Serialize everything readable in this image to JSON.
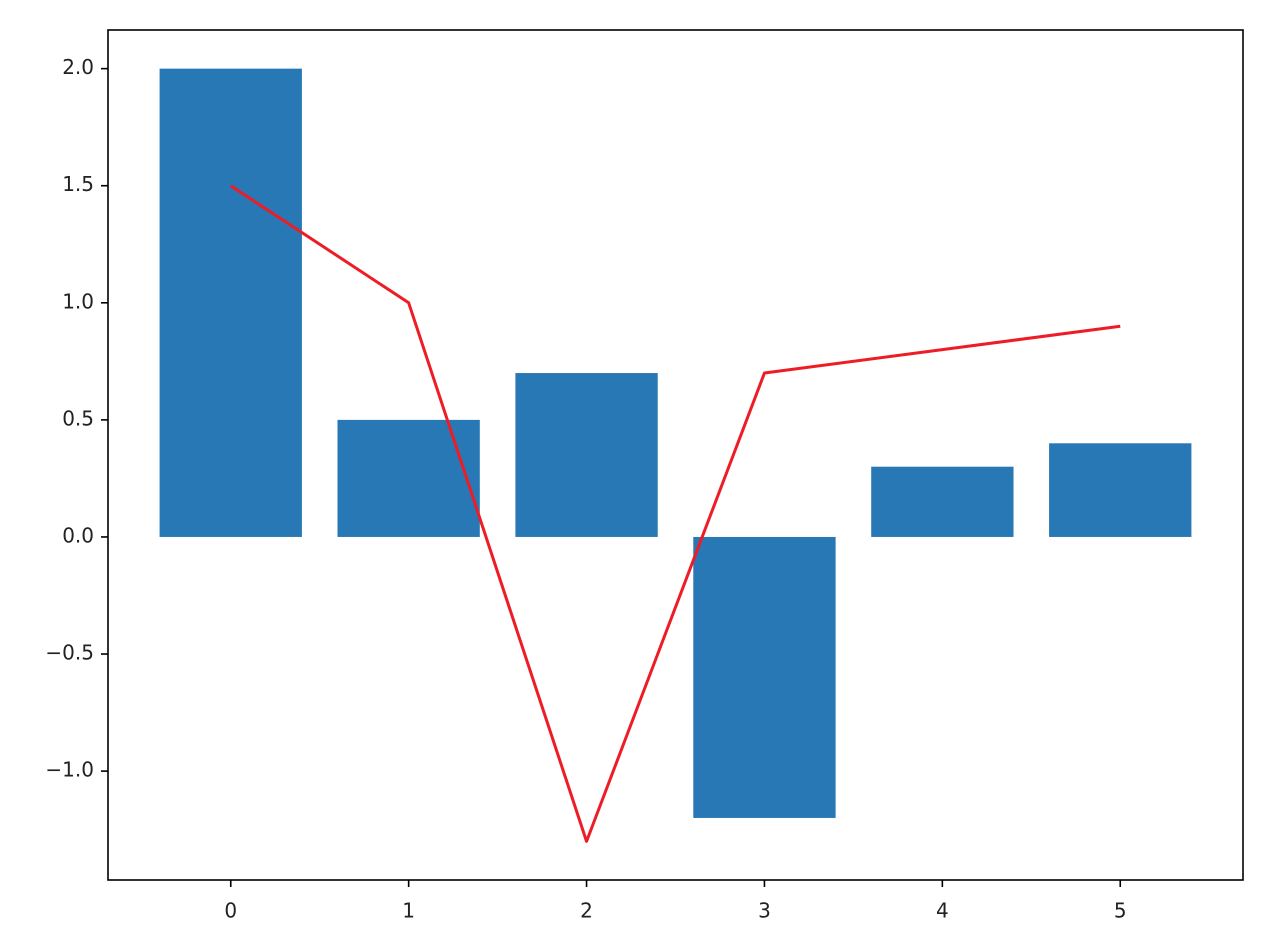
{
  "chart_data": {
    "type": "bar",
    "x": [
      0,
      1,
      2,
      3,
      4,
      5
    ],
    "series": [
      {
        "type": "bar",
        "color": "#2878b5",
        "values": [
          2.0,
          0.5,
          0.7,
          -1.2,
          0.3,
          0.4
        ]
      },
      {
        "type": "line",
        "color": "#ee1c25",
        "values": [
          1.5,
          1.0,
          -1.3,
          0.7,
          0.8,
          0.9
        ]
      }
    ],
    "xlim": [
      -0.69,
      5.69
    ],
    "xticks": [
      0,
      1,
      2,
      3,
      4,
      5
    ],
    "ylim": [
      -1.465,
      2.165
    ],
    "yticks": [
      {
        "value": -1.0,
        "label": "−1.0"
      },
      {
        "value": -0.5,
        "label": "−0.5"
      },
      {
        "value": 0.0,
        "label": "0.0"
      },
      {
        "value": 0.5,
        "label": "0.5"
      },
      {
        "value": 1.0,
        "label": "1.0"
      },
      {
        "value": 1.5,
        "label": "1.5"
      },
      {
        "value": 2.0,
        "label": "2.0"
      }
    ],
    "grid": false
  }
}
